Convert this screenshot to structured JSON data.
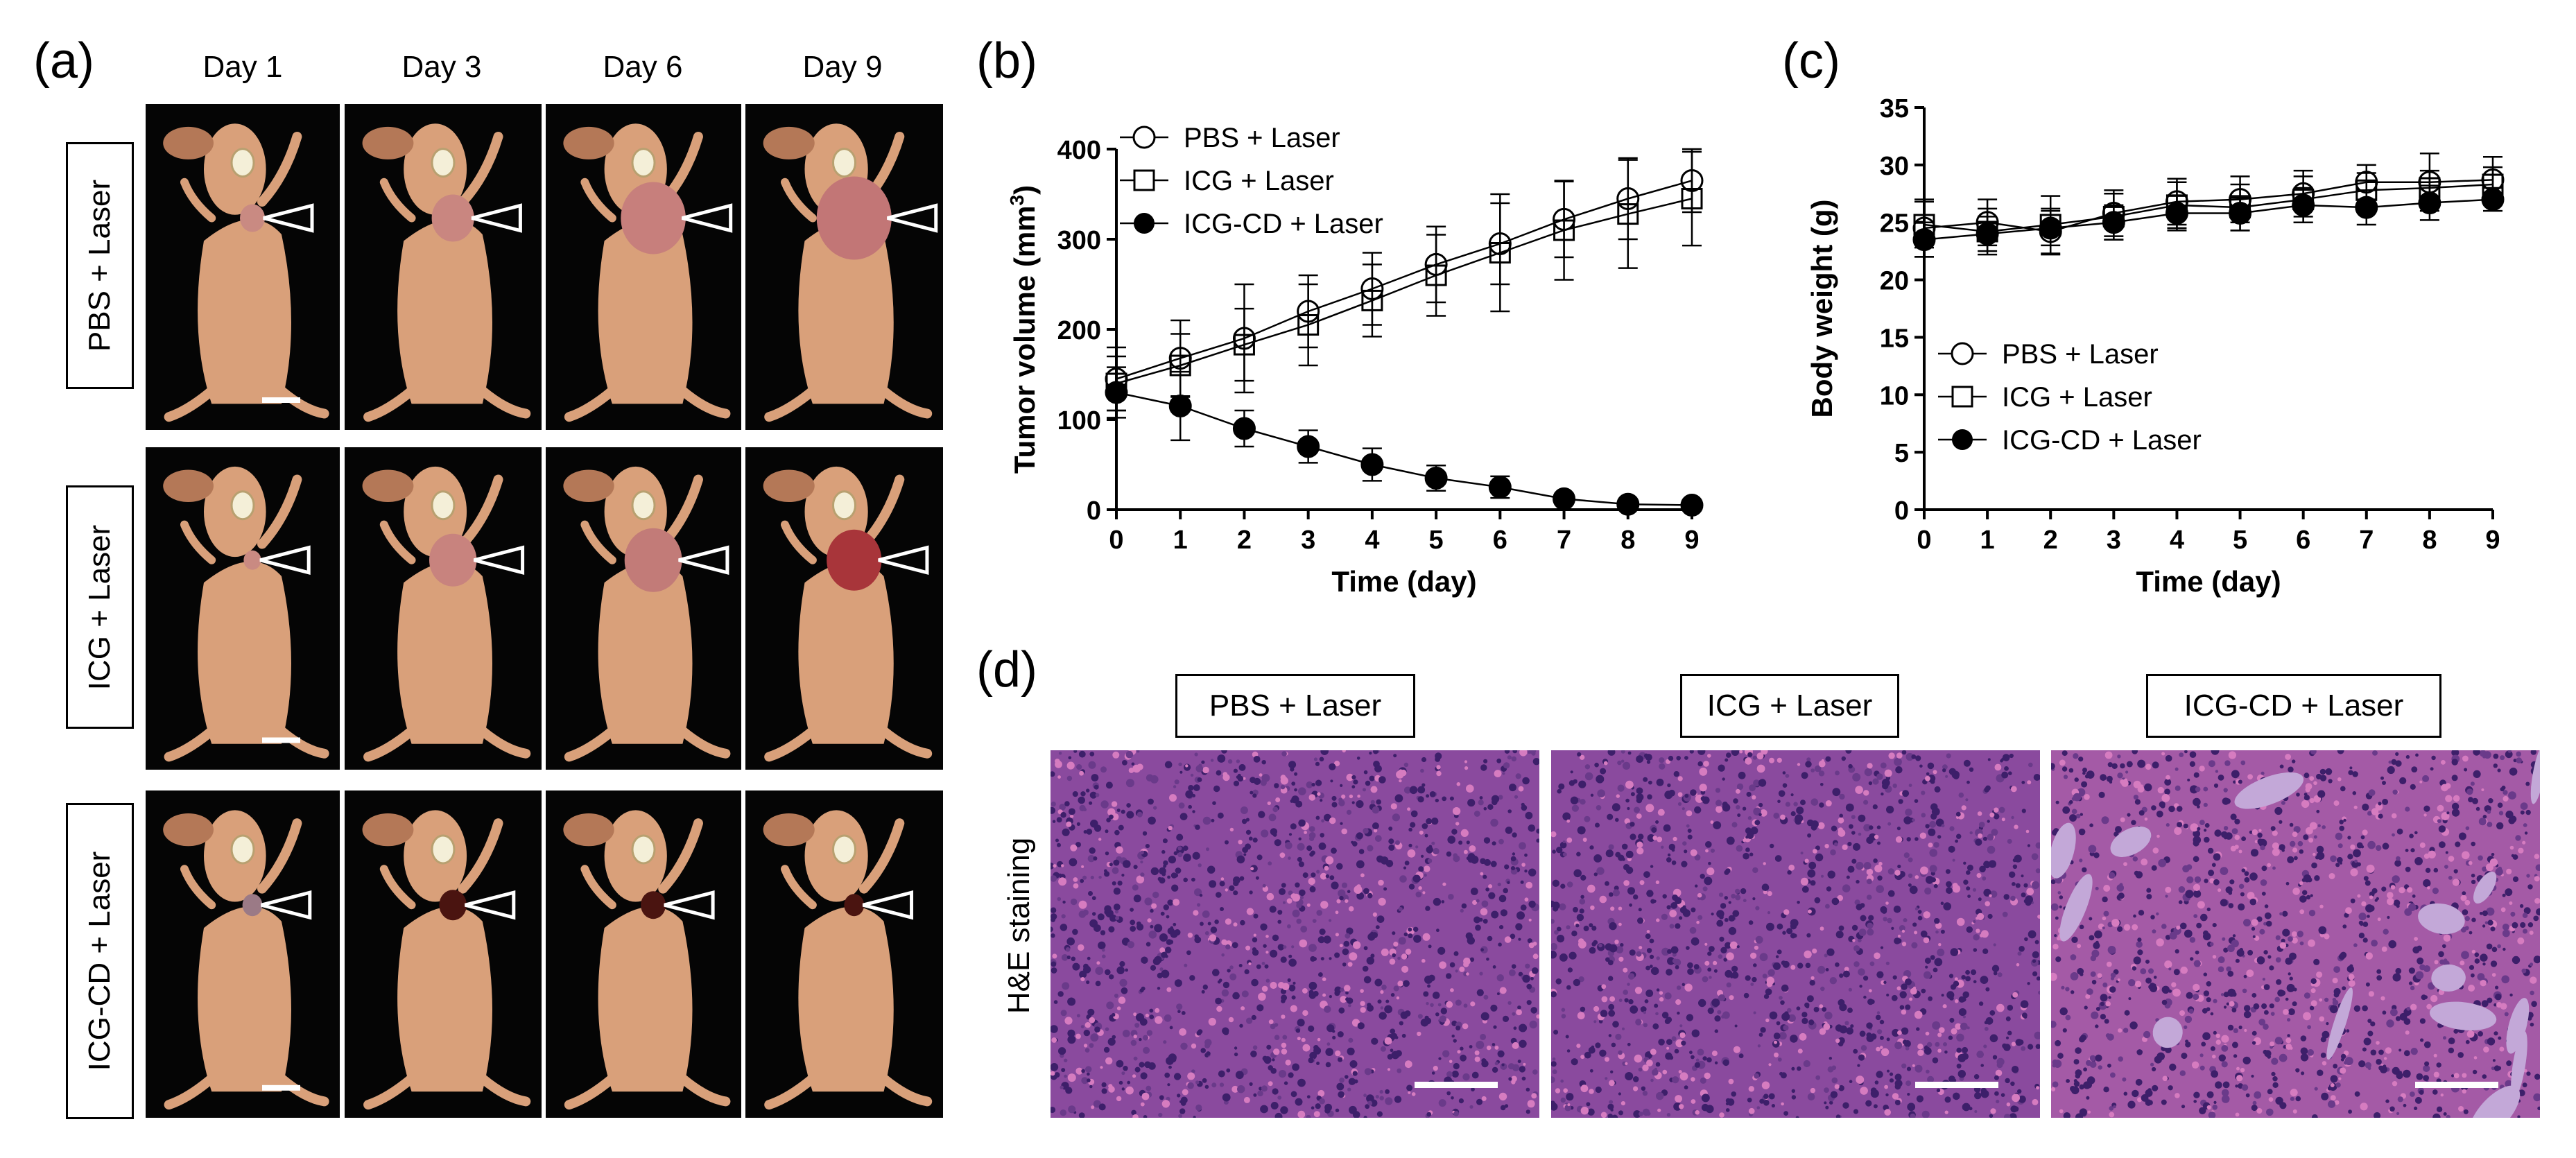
{
  "panel_letters": {
    "a": "(a)",
    "b": "(b)",
    "c": "(c)",
    "d": "(d)"
  },
  "panel_a": {
    "days": [
      "Day 1",
      "Day 3",
      "Day 6",
      "Day 9"
    ],
    "groups": [
      "PBS + Laser",
      "ICG + Laser",
      "ICG-CD + Laser"
    ],
    "colors": {
      "background": "#050505",
      "skin": "#d9a07a",
      "skin_dark": "#b47857",
      "scar": "#4a1410"
    }
  },
  "chart_data": [
    {
      "id": "b",
      "type": "line",
      "title": "",
      "xlabel": "Time (day)",
      "ylabel": "Tumor volume (mm³)",
      "ylabel_base": "Tumor volume (mm",
      "ylabel_sup": "3",
      "ylabel_end": ")",
      "xlim": [
        0,
        9
      ],
      "ylim": [
        0,
        400
      ],
      "xticks": [
        0,
        1,
        2,
        3,
        4,
        5,
        6,
        7,
        8,
        9
      ],
      "yticks": [
        0,
        100,
        200,
        300,
        400
      ],
      "legend_position": "top-left",
      "x": [
        0,
        1,
        2,
        3,
        4,
        5,
        6,
        7,
        8,
        9
      ],
      "series": [
        {
          "name": "PBS + Laser",
          "marker": "open-circle",
          "values": [
            145,
            168,
            190,
            220,
            245,
            272,
            295,
            322,
            345,
            365
          ],
          "errors": [
            35,
            42,
            60,
            40,
            40,
            42,
            45,
            42,
            45,
            35
          ]
        },
        {
          "name": "ICG + Laser",
          "marker": "open-square",
          "values": [
            140,
            160,
            183,
            205,
            232,
            260,
            285,
            310,
            328,
            345
          ],
          "errors": [
            30,
            35,
            40,
            45,
            40,
            45,
            65,
            55,
            60,
            52
          ]
        },
        {
          "name": "ICG-CD + Laser",
          "marker": "filled-circle",
          "values": [
            130,
            115,
            90,
            70,
            50,
            35,
            25,
            12,
            6,
            5
          ],
          "errors": [
            28,
            38,
            20,
            18,
            18,
            14,
            12,
            6,
            4,
            4
          ]
        }
      ]
    },
    {
      "id": "c",
      "type": "line",
      "title": "",
      "xlabel": "Time (day)",
      "ylabel": "Body weight (g)",
      "xlim": [
        0,
        9
      ],
      "ylim": [
        0,
        35
      ],
      "xticks": [
        0,
        1,
        2,
        3,
        4,
        5,
        6,
        7,
        8,
        9
      ],
      "yticks": [
        0,
        5,
        10,
        15,
        20,
        25,
        30,
        35
      ],
      "legend_position": "center-left",
      "x": [
        0,
        1,
        2,
        3,
        4,
        5,
        6,
        7,
        8,
        9
      ],
      "series": [
        {
          "name": "PBS + Laser",
          "marker": "open-circle",
          "values": [
            24.5,
            25.0,
            24.2,
            25.8,
            26.8,
            27.0,
            27.5,
            28.5,
            28.5,
            28.7
          ],
          "errors": [
            2.5,
            2.0,
            2.0,
            2.0,
            2.0,
            2.0,
            2.0,
            1.5,
            2.5,
            2.0
          ]
        },
        {
          "name": "ICG + Laser",
          "marker": "open-square",
          "values": [
            24.8,
            24.2,
            24.8,
            25.5,
            26.5,
            26.3,
            27.0,
            27.8,
            28.0,
            28.3
          ],
          "errors": [
            2.0,
            2.0,
            2.5,
            2.0,
            2.0,
            2.0,
            2.0,
            1.5,
            1.5,
            1.5
          ]
        },
        {
          "name": "ICG-CD + Laser",
          "marker": "filled-circle",
          "values": [
            23.5,
            24.0,
            24.5,
            25.0,
            25.8,
            25.8,
            26.5,
            26.3,
            26.7,
            27.0
          ],
          "errors": [
            1.5,
            1.5,
            1.5,
            1.5,
            1.5,
            1.5,
            1.5,
            1.5,
            1.5,
            1.0
          ]
        }
      ]
    }
  ],
  "panel_d": {
    "row_label": "H&E staining",
    "groups": [
      "PBS + Laser",
      "ICG + Laser",
      "ICG-CD + Laser"
    ],
    "colors": {
      "tissue_base": "#8a4a9e",
      "tissue_dark": "#3d1f6a",
      "tissue_pink": "#d67cc0",
      "tissue_light": "#c3a8d8",
      "scale_bar": "#ffffff"
    }
  }
}
